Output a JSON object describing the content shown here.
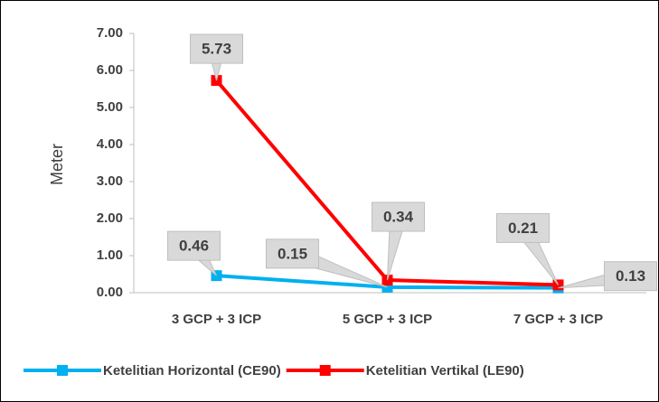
{
  "chart_data": {
    "type": "line",
    "y_label": "Meter",
    "categories": [
      "3 GCP + 3 ICP",
      "5 GCP + 3 ICP",
      "7 GCP + 3 ICP"
    ],
    "series": [
      {
        "name": "Ketelitian Horizontal (CE90)",
        "color": "#00b0f0",
        "values": [
          0.46,
          0.15,
          0.13
        ]
      },
      {
        "name": "Ketelitian Vertikal (LE90)",
        "color": "#ff0000",
        "values": [
          5.73,
          0.34,
          0.21
        ]
      }
    ],
    "ylim": [
      0,
      7
    ],
    "yticks": [
      {
        "value": 0,
        "label": "0.00"
      },
      {
        "value": 1,
        "label": "1.00"
      },
      {
        "value": 2,
        "label": "2.00"
      },
      {
        "value": 3,
        "label": "3.00"
      },
      {
        "value": 4,
        "label": "4.00"
      },
      {
        "value": 5,
        "label": "5.00"
      },
      {
        "value": 6,
        "label": "6.00"
      },
      {
        "value": 7,
        "label": "7.00"
      }
    ],
    "legend": "bottom"
  }
}
